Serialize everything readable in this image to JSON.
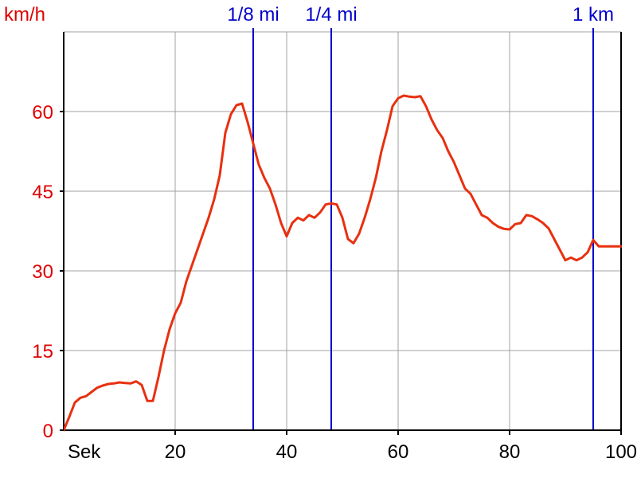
{
  "chart_data": {
    "type": "line",
    "y_unit_label": "km/h",
    "x_unit_label": "Sek",
    "xlim": [
      0,
      100
    ],
    "ylim": [
      0,
      75
    ],
    "x_ticks": [
      20,
      40,
      60,
      80,
      100
    ],
    "y_ticks": [
      0,
      15,
      30,
      45,
      60
    ],
    "grid": true,
    "colors": {
      "series": "#e83010",
      "markers": "#0000cc",
      "y_axis_text": "#e00000",
      "x_axis_text": "#000000",
      "grid": "#a0a0a0"
    },
    "markers": [
      {
        "label": "1/8 mi",
        "x": 34
      },
      {
        "label": "1/4 mi",
        "x": 48
      },
      {
        "label": "1 km",
        "x": 95
      }
    ],
    "series": [
      {
        "x": [
          0,
          1,
          2,
          3,
          4,
          5,
          6,
          7,
          8,
          9,
          10,
          11,
          12,
          13,
          14,
          15,
          16,
          17,
          18,
          19,
          20,
          21,
          22,
          23,
          24,
          25,
          26,
          27,
          28,
          29,
          30,
          31,
          32,
          33,
          34,
          35,
          36,
          37,
          38,
          39,
          40,
          41,
          42,
          43,
          44,
          45,
          46,
          47,
          48,
          49,
          50,
          51,
          52,
          53,
          54,
          55,
          56,
          57,
          58,
          59,
          60,
          61,
          62,
          63,
          64,
          65,
          66,
          67,
          68,
          69,
          70,
          71,
          72,
          73,
          74,
          75,
          76,
          77,
          78,
          79,
          80,
          81,
          82,
          83,
          84,
          85,
          86,
          87,
          88,
          89,
          90,
          91,
          92,
          93,
          94,
          95,
          96,
          97,
          98,
          99,
          100
        ],
        "values": [
          0,
          2.5,
          5.2,
          6.1,
          6.4,
          7.2,
          8,
          8.4,
          8.7,
          8.8,
          9,
          8.9,
          8.8,
          9.2,
          8.5,
          5.5,
          5.5,
          10,
          15,
          19,
          22,
          24,
          28,
          31,
          34,
          37,
          40,
          43.5,
          48,
          56,
          59.5,
          61.2,
          61.5,
          58,
          54,
          50,
          47.5,
          45.5,
          42.5,
          39,
          36.5,
          39,
          40,
          39.5,
          40.5,
          40,
          41,
          42.5,
          42.7,
          42.5,
          40,
          36,
          35.2,
          37,
          40,
          43.5,
          47.5,
          52.5,
          56.5,
          61,
          62.5,
          63,
          62.8,
          62.7,
          62.9,
          61,
          58.5,
          56.5,
          55,
          52.5,
          50.5,
          48,
          45.5,
          44.5,
          42.5,
          40.5,
          40,
          39,
          38.3,
          37.9,
          37.8,
          38.8,
          39,
          40.5,
          40.3,
          39.7,
          39,
          38,
          36,
          34,
          32,
          32.5,
          32,
          32.5,
          33.5,
          35.8,
          34.6,
          34.6,
          34.6,
          34.6,
          34.6
        ]
      }
    ]
  }
}
